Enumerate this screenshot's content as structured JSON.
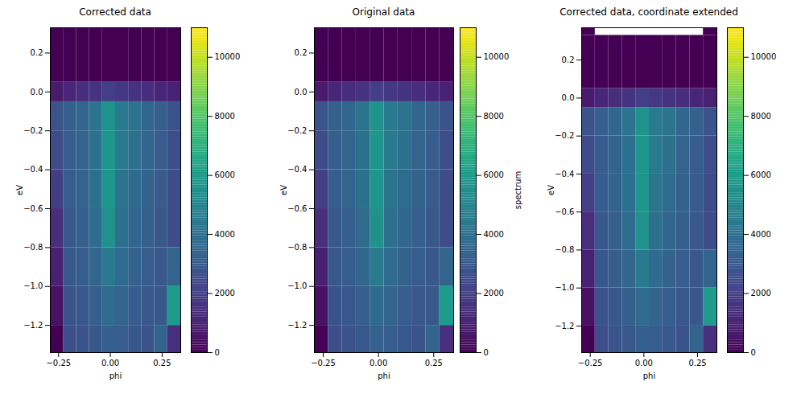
{
  "chart_data": [
    {
      "type": "heatmap",
      "title": "Corrected data",
      "x_label": "phi",
      "y_label": "eV",
      "color": "viridis",
      "phi_edges": [
        -0.29,
        -0.227,
        -0.164,
        -0.101,
        -0.038,
        0.025,
        0.088,
        0.151,
        0.214,
        0.277,
        0.34
      ],
      "eV_edges": [
        -1.34,
        -1.2,
        -1.0,
        -0.8,
        -0.6,
        -0.4,
        -0.2,
        -0.05,
        0.05,
        0.33
      ],
      "values": [
        [
          0,
          2600,
          2800,
          3000,
          3300,
          3200,
          3000,
          2800,
          3500,
          1500
        ],
        [
          500,
          2800,
          3000,
          3300,
          3800,
          3500,
          3200,
          3000,
          3000,
          6000
        ],
        [
          1000,
          3000,
          3200,
          3600,
          4500,
          3800,
          3400,
          3200,
          3000,
          3500
        ],
        [
          1500,
          3000,
          3300,
          3800,
          5500,
          4000,
          3600,
          3300,
          3000,
          2500
        ],
        [
          2000,
          3200,
          3500,
          4000,
          5800,
          4200,
          3800,
          3400,
          3100,
          2500
        ],
        [
          2500,
          3200,
          3500,
          4000,
          5800,
          4500,
          4000,
          3500,
          3200,
          2600
        ],
        [
          2800,
          3300,
          3600,
          4200,
          5600,
          4500,
          4200,
          3600,
          3300,
          2800
        ],
        [
          800,
          1200,
          1400,
          1600,
          2000,
          1800,
          1600,
          1400,
          1200,
          1000
        ],
        [
          0,
          0,
          0,
          0,
          0,
          0,
          0,
          0,
          0,
          0
        ]
      ],
      "xlim": [
        -0.29,
        0.34
      ],
      "xticks": [
        {
          "value": -0.25,
          "label": "−0.25"
        },
        {
          "value": 0,
          "label": "0.00"
        },
        {
          "value": 0.25,
          "label": "0.25"
        }
      ],
      "ylim": [
        -1.34,
        0.33
      ],
      "yticks": [
        {
          "value": -1.2,
          "label": "−1.2"
        },
        {
          "value": -1.0,
          "label": "−1.0"
        },
        {
          "value": -0.8,
          "label": "−0.8"
        },
        {
          "value": -0.6,
          "label": "−0.6"
        },
        {
          "value": -0.4,
          "label": "−0.4"
        },
        {
          "value": -0.2,
          "label": "−0.2"
        },
        {
          "value": 0,
          "label": "0.0"
        },
        {
          "value": 0.2,
          "label": "0.2"
        }
      ],
      "colorbar_range": [
        0,
        11000
      ],
      "colorbar_ticks": [
        0,
        2000,
        4000,
        6000,
        8000,
        10000
      ]
    },
    {
      "type": "heatmap",
      "title": "Original data",
      "x_label": "phi",
      "y_label": "eV",
      "color": "viridis",
      "phi_edges": [
        -0.29,
        -0.227,
        -0.164,
        -0.101,
        -0.038,
        0.025,
        0.088,
        0.151,
        0.214,
        0.277,
        0.34
      ],
      "eV_edges": [
        -1.34,
        -1.2,
        -1.0,
        -0.8,
        -0.6,
        -0.4,
        -0.2,
        -0.05,
        0.05,
        0.33
      ],
      "values": [
        [
          0,
          2600,
          2800,
          3000,
          3300,
          3200,
          3000,
          2800,
          3500,
          1500
        ],
        [
          500,
          2800,
          3000,
          3300,
          3800,
          3500,
          3200,
          3000,
          3000,
          6000
        ],
        [
          1000,
          3000,
          3200,
          3600,
          4500,
          3800,
          3400,
          3200,
          3000,
          3500
        ],
        [
          1500,
          3000,
          3300,
          3800,
          5500,
          4000,
          3600,
          3300,
          3000,
          2500
        ],
        [
          2000,
          3200,
          3500,
          4000,
          5800,
          4200,
          3800,
          3400,
          3100,
          2500
        ],
        [
          2500,
          3200,
          3500,
          4000,
          5800,
          4500,
          4000,
          3500,
          3200,
          2600
        ],
        [
          2800,
          3300,
          3600,
          4200,
          5600,
          4500,
          4200,
          3600,
          3300,
          2800
        ],
        [
          800,
          1200,
          1400,
          1600,
          2000,
          1800,
          1600,
          1400,
          1200,
          1000
        ],
        [
          0,
          0,
          0,
          0,
          0,
          0,
          0,
          0,
          0,
          0
        ]
      ],
      "xlim": [
        -0.29,
        0.34
      ],
      "xticks": [
        {
          "value": -0.25,
          "label": "−0.25"
        },
        {
          "value": 0,
          "label": "0.00"
        },
        {
          "value": 0.25,
          "label": "0.25"
        }
      ],
      "ylim": [
        -1.34,
        0.33
      ],
      "yticks": [
        {
          "value": -1.2,
          "label": "−1.2"
        },
        {
          "value": -1.0,
          "label": "−1.0"
        },
        {
          "value": -0.8,
          "label": "−0.8"
        },
        {
          "value": -0.6,
          "label": "−0.6"
        },
        {
          "value": -0.4,
          "label": "−0.4"
        },
        {
          "value": -0.2,
          "label": "−0.2"
        },
        {
          "value": 0,
          "label": "0.0"
        },
        {
          "value": 0.2,
          "label": "0.2"
        }
      ],
      "colorbar_range": [
        0,
        11000
      ],
      "colorbar_ticks": [
        0,
        2000,
        4000,
        6000,
        8000,
        10000
      ],
      "colorbar_label": "spectrum"
    },
    {
      "type": "heatmap",
      "title": "Corrected data, coordinate extended",
      "x_label": "phi",
      "y_label": "eV",
      "color": "viridis",
      "phi_edges": [
        -0.29,
        -0.227,
        -0.164,
        -0.101,
        -0.038,
        0.025,
        0.088,
        0.151,
        0.214,
        0.277,
        0.34
      ],
      "eV_edges": [
        -1.34,
        -1.2,
        -1.0,
        -0.8,
        -0.6,
        -0.4,
        -0.2,
        -0.05,
        0.05,
        0.33,
        0.37
      ],
      "values": [
        [
          0,
          2600,
          2800,
          3000,
          3300,
          3200,
          3000,
          2800,
          3500,
          1500
        ],
        [
          500,
          2800,
          3000,
          3300,
          3800,
          3500,
          3200,
          3000,
          3000,
          6000
        ],
        [
          1000,
          3000,
          3200,
          3600,
          4500,
          3800,
          3400,
          3200,
          3000,
          3500
        ],
        [
          1500,
          3000,
          3300,
          3800,
          5500,
          4000,
          3600,
          3300,
          3000,
          2500
        ],
        [
          2000,
          3200,
          3500,
          4000,
          5800,
          4200,
          3800,
          3400,
          3100,
          2500
        ],
        [
          2500,
          3200,
          3500,
          4000,
          5800,
          4500,
          4000,
          3500,
          3200,
          2600
        ],
        [
          2800,
          3300,
          3600,
          4200,
          5600,
          4500,
          4200,
          3600,
          3300,
          2800
        ],
        [
          800,
          1200,
          1400,
          1600,
          2000,
          1800,
          1600,
          1400,
          1200,
          1000
        ],
        [
          0,
          0,
          0,
          0,
          0,
          0,
          0,
          0,
          0,
          0
        ],
        [
          0,
          null,
          null,
          null,
          null,
          null,
          null,
          null,
          null,
          0
        ]
      ],
      "xlim": [
        -0.29,
        0.34
      ],
      "xticks": [
        {
          "value": -0.25,
          "label": "−0.25"
        },
        {
          "value": 0,
          "label": "0.00"
        },
        {
          "value": 0.25,
          "label": "0.25"
        }
      ],
      "ylim": [
        -1.34,
        0.37
      ],
      "yticks": [
        {
          "value": -1.2,
          "label": "−1.2"
        },
        {
          "value": -1.0,
          "label": "−1.0"
        },
        {
          "value": -0.8,
          "label": "−0.8"
        },
        {
          "value": -0.6,
          "label": "−0.6"
        },
        {
          "value": -0.4,
          "label": "−0.4"
        },
        {
          "value": -0.2,
          "label": "−0.2"
        },
        {
          "value": 0,
          "label": "0.0"
        },
        {
          "value": 0.2,
          "label": "0.2"
        }
      ],
      "colorbar_range": [
        0,
        11000
      ],
      "colorbar_ticks": [
        0,
        2000,
        4000,
        6000,
        8000,
        10000
      ]
    }
  ]
}
